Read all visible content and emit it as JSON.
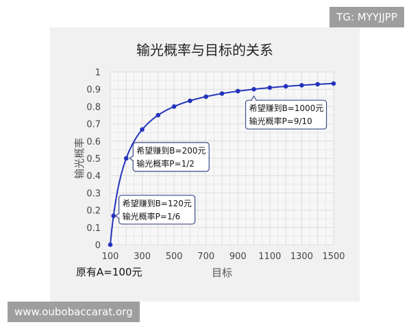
{
  "watermarks": {
    "top": "TG: MYYJJPP",
    "bottom": "www.oubobaccarat.org"
  },
  "chart_data": {
    "type": "line",
    "title": "输光概率与目标的关系",
    "xlabel": "目标",
    "ylabel": "输光概率",
    "note": "原有A=100元",
    "xlim": [
      100,
      1500
    ],
    "ylim": [
      0,
      1
    ],
    "xticks": [
      100,
      300,
      500,
      700,
      900,
      1100,
      1300,
      1500
    ],
    "yticks": [
      0,
      0.1,
      0.2,
      0.3,
      0.4,
      0.5,
      0.6,
      0.7,
      0.8,
      0.9,
      1
    ],
    "grid": true,
    "line_color": "#2233bb",
    "x": [
      100,
      120,
      200,
      300,
      400,
      500,
      600,
      700,
      800,
      900,
      1000,
      1100,
      1200,
      1300,
      1400,
      1500
    ],
    "y": [
      0,
      0.167,
      0.5,
      0.667,
      0.75,
      0.8,
      0.833,
      0.857,
      0.875,
      0.889,
      0.9,
      0.909,
      0.917,
      0.923,
      0.929,
      0.933
    ],
    "annotations": [
      {
        "x": 120,
        "y": 0.167,
        "lines": [
          "希望赚到B=120元",
          "输光概率P=1/6"
        ]
      },
      {
        "x": 200,
        "y": 0.5,
        "lines": [
          "希望赚到B=200元",
          "输光概率P=1/2"
        ]
      },
      {
        "x": 1000,
        "y": 0.9,
        "lines": [
          "希望赚到B=1000元",
          "输光概率P=9/10"
        ]
      }
    ]
  }
}
